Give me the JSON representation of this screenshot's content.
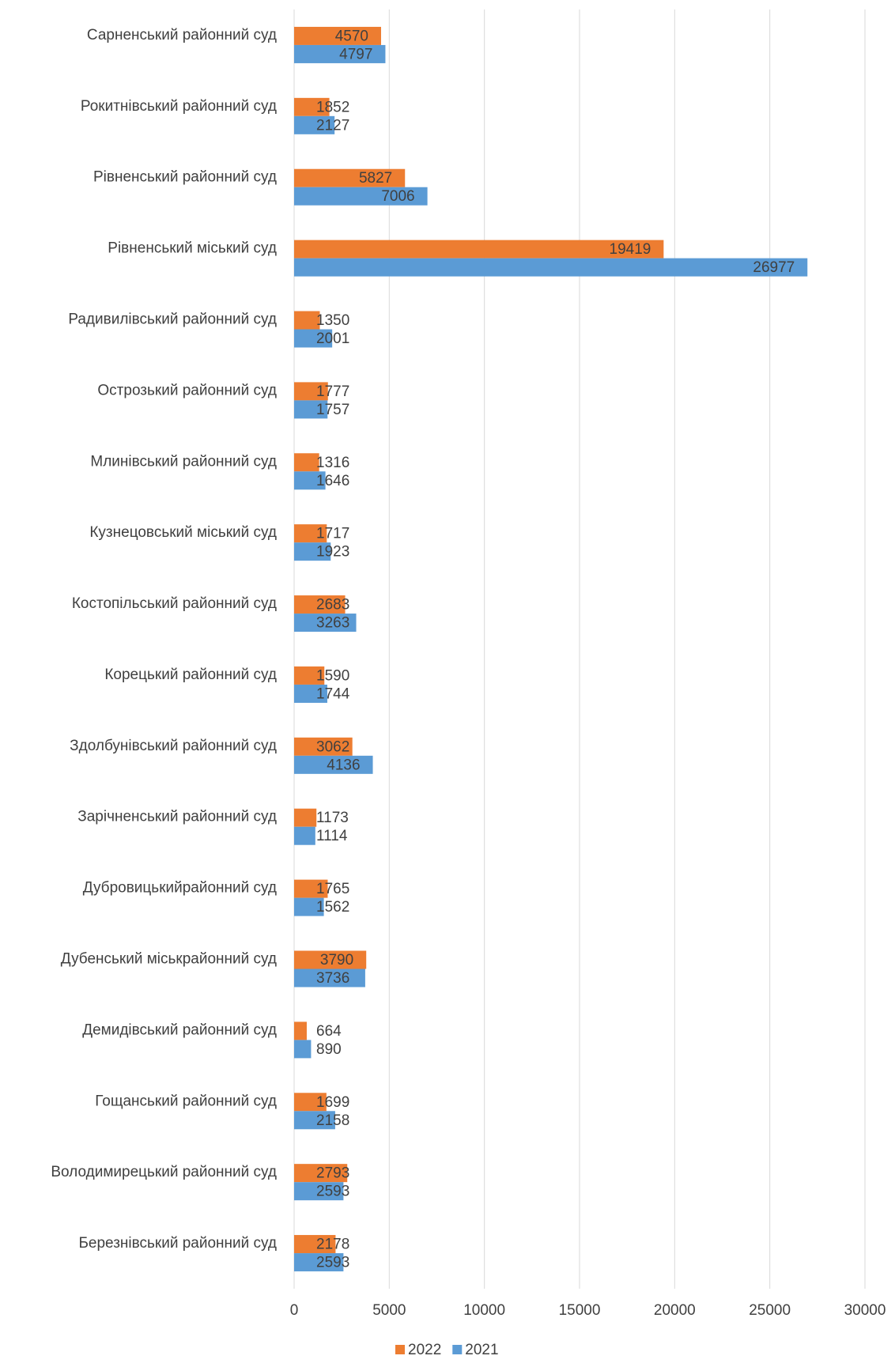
{
  "chart_data": {
    "type": "barh",
    "categories": [
      "Сарненський районний суд",
      "Рокитнівський районний суд",
      "Рівненський районний суд",
      "Рівненський міський суд",
      "Радивилівський районний суд",
      "Острозький районний суд",
      "Млинівський районний суд",
      "Кузнецовський міський суд",
      "Костопільський районний суд",
      "Корецький районний суд",
      "Здолбунівський районний суд",
      "Зарічненський районний суд",
      "Дубровицькийрайонний суд",
      "Дубенський міськрайонний суд",
      "Демидівський районний суд",
      "Гощанський районний суд",
      "Володимирецький районний суд",
      "Березнівський районний суд"
    ],
    "series": [
      {
        "name": "2022",
        "color": "#ed7d31",
        "values": [
          4570,
          1852,
          5827,
          19419,
          1350,
          1777,
          1316,
          1717,
          2683,
          1590,
          3062,
          1173,
          1765,
          3790,
          664,
          1699,
          2793,
          2178
        ]
      },
      {
        "name": "2021",
        "color": "#5b9bd5",
        "values": [
          4797,
          2127,
          7006,
          26977,
          2001,
          1757,
          1646,
          1923,
          3263,
          1744,
          4136,
          1114,
          1562,
          3736,
          890,
          2158,
          2593,
          2593
        ]
      }
    ],
    "xlim": [
      0,
      30000
    ],
    "xticks": [
      0,
      5000,
      10000,
      15000,
      20000,
      25000,
      30000
    ],
    "grid": true,
    "legend": "bottom"
  }
}
